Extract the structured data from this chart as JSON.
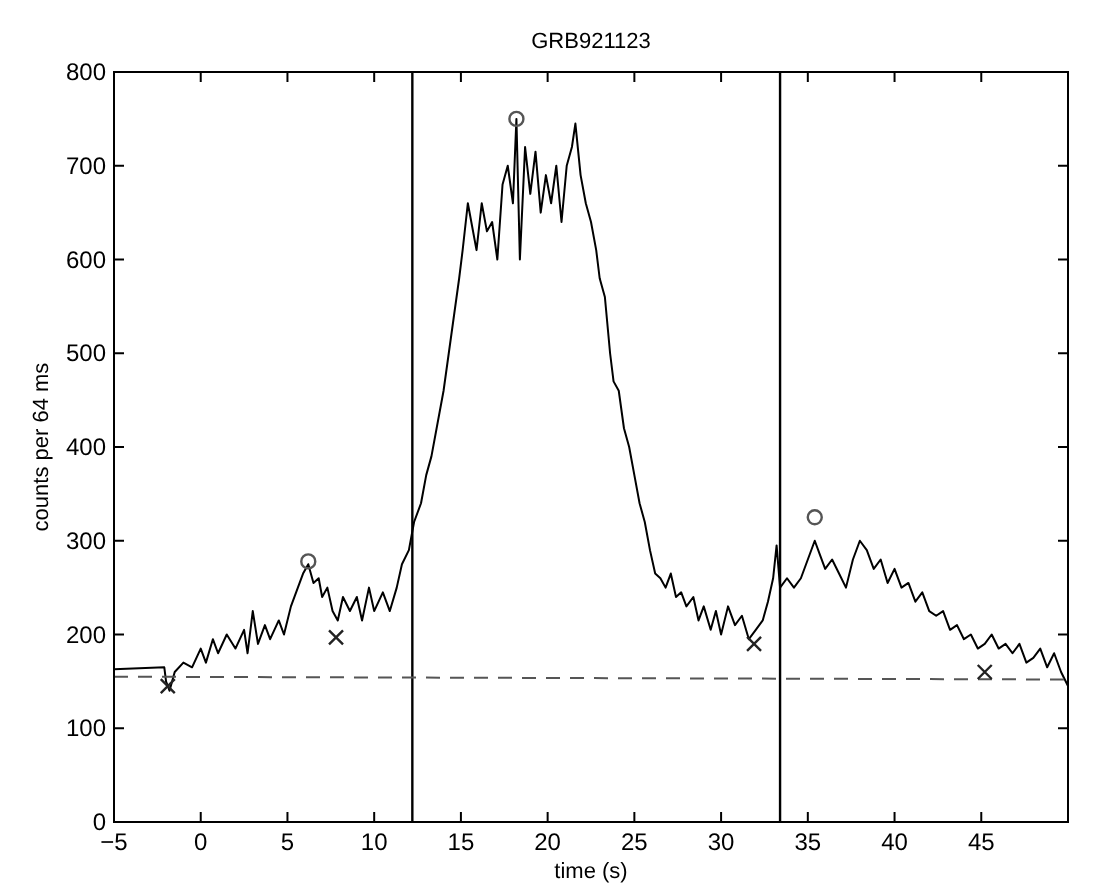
{
  "chart_data": {
    "type": "line",
    "title": "GRB921123",
    "xlabel": "time (s)",
    "ylabel": "counts per 64 ms",
    "xlim": [
      -5,
      50
    ],
    "ylim": [
      0,
      800
    ],
    "xticks": [
      -5,
      0,
      5,
      10,
      15,
      20,
      25,
      30,
      35,
      40,
      45
    ],
    "yticks": [
      0,
      100,
      200,
      300,
      400,
      500,
      600,
      700,
      800
    ],
    "grid": false,
    "series": [
      {
        "color": "#000000",
        "marker": "none",
        "line_style": "solid",
        "x": [
          -5,
          -2.1,
          -2,
          -1.8,
          -1.5,
          -1,
          -0.5,
          0,
          0.3,
          0.7,
          1,
          1.5,
          2,
          2.5,
          2.7,
          3,
          3.3,
          3.7,
          4,
          4.5,
          4.8,
          5.2,
          5.6,
          5.9,
          6.2,
          6.5,
          6.8,
          7,
          7.3,
          7.6,
          7.9,
          8.2,
          8.6,
          9,
          9.3,
          9.7,
          10,
          10.5,
          10.9,
          11.3,
          11.6,
          12,
          12.3,
          12.7,
          13,
          13.3,
          13.6,
          14,
          14.3,
          14.6,
          14.9,
          15.1,
          15.4,
          15.6,
          15.9,
          16.2,
          16.5,
          16.8,
          17.1,
          17.4,
          17.7,
          18,
          18.2,
          18.4,
          18.7,
          19,
          19.3,
          19.6,
          19.9,
          20.2,
          20.5,
          20.8,
          21.1,
          21.4,
          21.6,
          21.9,
          22.2,
          22.5,
          22.8,
          23,
          23.3,
          23.6,
          23.8,
          24.1,
          24.4,
          24.7,
          25,
          25.3,
          25.6,
          25.9,
          26.2,
          26.5,
          26.8,
          27.1,
          27.4,
          27.7,
          28,
          28.4,
          28.7,
          29,
          29.4,
          29.7,
          30,
          30.4,
          30.8,
          31.2,
          31.6,
          32,
          32.4,
          32.7,
          33,
          33.2,
          33.4,
          33.8,
          34.2,
          34.6,
          35,
          35.4,
          35.7,
          36,
          36.4,
          36.8,
          37.2,
          37.6,
          38,
          38.4,
          38.8,
          39.2,
          39.6,
          40,
          40.4,
          40.8,
          41.2,
          41.6,
          42,
          42.4,
          42.8,
          43.2,
          43.6,
          44,
          44.4,
          44.8,
          45.2,
          45.6,
          46,
          46.4,
          46.8,
          47.2,
          47.6,
          48,
          48.4,
          48.8,
          49.2,
          49.6,
          50
        ],
        "values": [
          163,
          165,
          150,
          140,
          160,
          170,
          165,
          185,
          170,
          195,
          180,
          200,
          185,
          205,
          180,
          225,
          190,
          210,
          195,
          215,
          200,
          230,
          250,
          265,
          275,
          255,
          260,
          240,
          250,
          225,
          215,
          240,
          225,
          240,
          215,
          250,
          225,
          245,
          225,
          250,
          275,
          290,
          320,
          340,
          370,
          390,
          420,
          460,
          500,
          540,
          580,
          610,
          660,
          640,
          610,
          660,
          630,
          640,
          600,
          680,
          700,
          660,
          750,
          600,
          720,
          670,
          715,
          650,
          690,
          660,
          700,
          640,
          700,
          720,
          745,
          690,
          660,
          640,
          610,
          580,
          560,
          500,
          470,
          460,
          420,
          400,
          370,
          340,
          320,
          290,
          265,
          260,
          250,
          265,
          240,
          245,
          230,
          240,
          215,
          230,
          205,
          225,
          200,
          230,
          210,
          220,
          195,
          205,
          215,
          235,
          260,
          295,
          250,
          260,
          250,
          260,
          280,
          300,
          285,
          270,
          280,
          265,
          250,
          280,
          300,
          290,
          270,
          280,
          255,
          270,
          250,
          255,
          235,
          245,
          225,
          220,
          225,
          205,
          210,
          195,
          200,
          185,
          190,
          200,
          185,
          190,
          180,
          190,
          170,
          175,
          185,
          165,
          180,
          160,
          145
        ]
      },
      {
        "color": "#555555",
        "marker": "none",
        "line_style": "dashed",
        "x": [
          -5,
          50
        ],
        "values": [
          155,
          152
        ]
      },
      {
        "type": "scatter",
        "color": "#555555",
        "marker": "circle",
        "x": [
          6.2,
          18.2,
          35.4
        ],
        "values": [
          278,
          750,
          325
        ]
      },
      {
        "type": "scatter",
        "color": "#222222",
        "marker": "cross",
        "x": [
          -1.9,
          7.8,
          31.9,
          45.2
        ],
        "values": [
          145,
          197,
          190,
          160
        ]
      }
    ],
    "ref_lines": [
      {
        "axis": "x",
        "value": 12.2,
        "color": "#000000"
      },
      {
        "axis": "x",
        "value": 33.4,
        "color": "#000000"
      }
    ]
  }
}
